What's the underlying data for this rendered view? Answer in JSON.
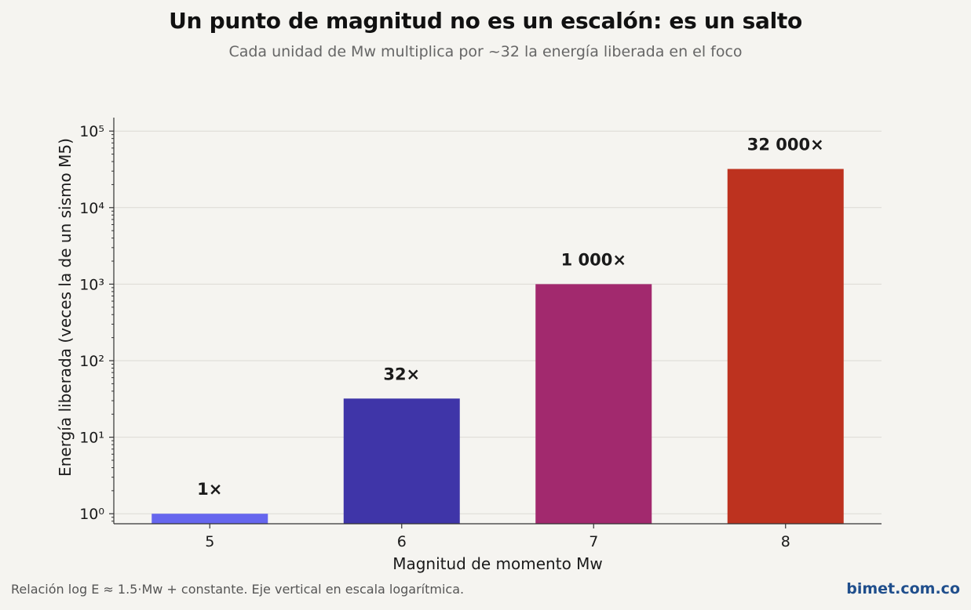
{
  "header": {
    "title": "Un punto de magnitud no es un escalón: es un salto",
    "subtitle": "Cada unidad de Mw multiplica por ~32 la energía liberada en el foco"
  },
  "footer": {
    "note": "Relación log E ≈ 1.5·Mw + constante. Eje vertical en escala logarítmica.",
    "brand": "bimet.com.co"
  },
  "chart_data": {
    "type": "bar",
    "categories": [
      "5",
      "6",
      "7",
      "8"
    ],
    "values": [
      1,
      32,
      1000,
      32000
    ],
    "data_labels": [
      "1×",
      "32×",
      "1 000×",
      "32 000×"
    ],
    "colors": [
      "#6666ee",
      "#3f35a8",
      "#a2296e",
      "#bd321f"
    ],
    "xlabel": "Magnitud de momento  Mw",
    "ylabel": "Energía liberada (veces la de un sismo M5)",
    "yscale": "log",
    "ylim": [
      0.74,
      150000
    ],
    "y_ticks": [
      1,
      10,
      100,
      1000,
      10000,
      100000
    ],
    "y_tick_labels": [
      "10⁰",
      "10¹",
      "10²",
      "10³",
      "10⁴",
      "10⁵"
    ],
    "grid": true,
    "legend": "none"
  }
}
